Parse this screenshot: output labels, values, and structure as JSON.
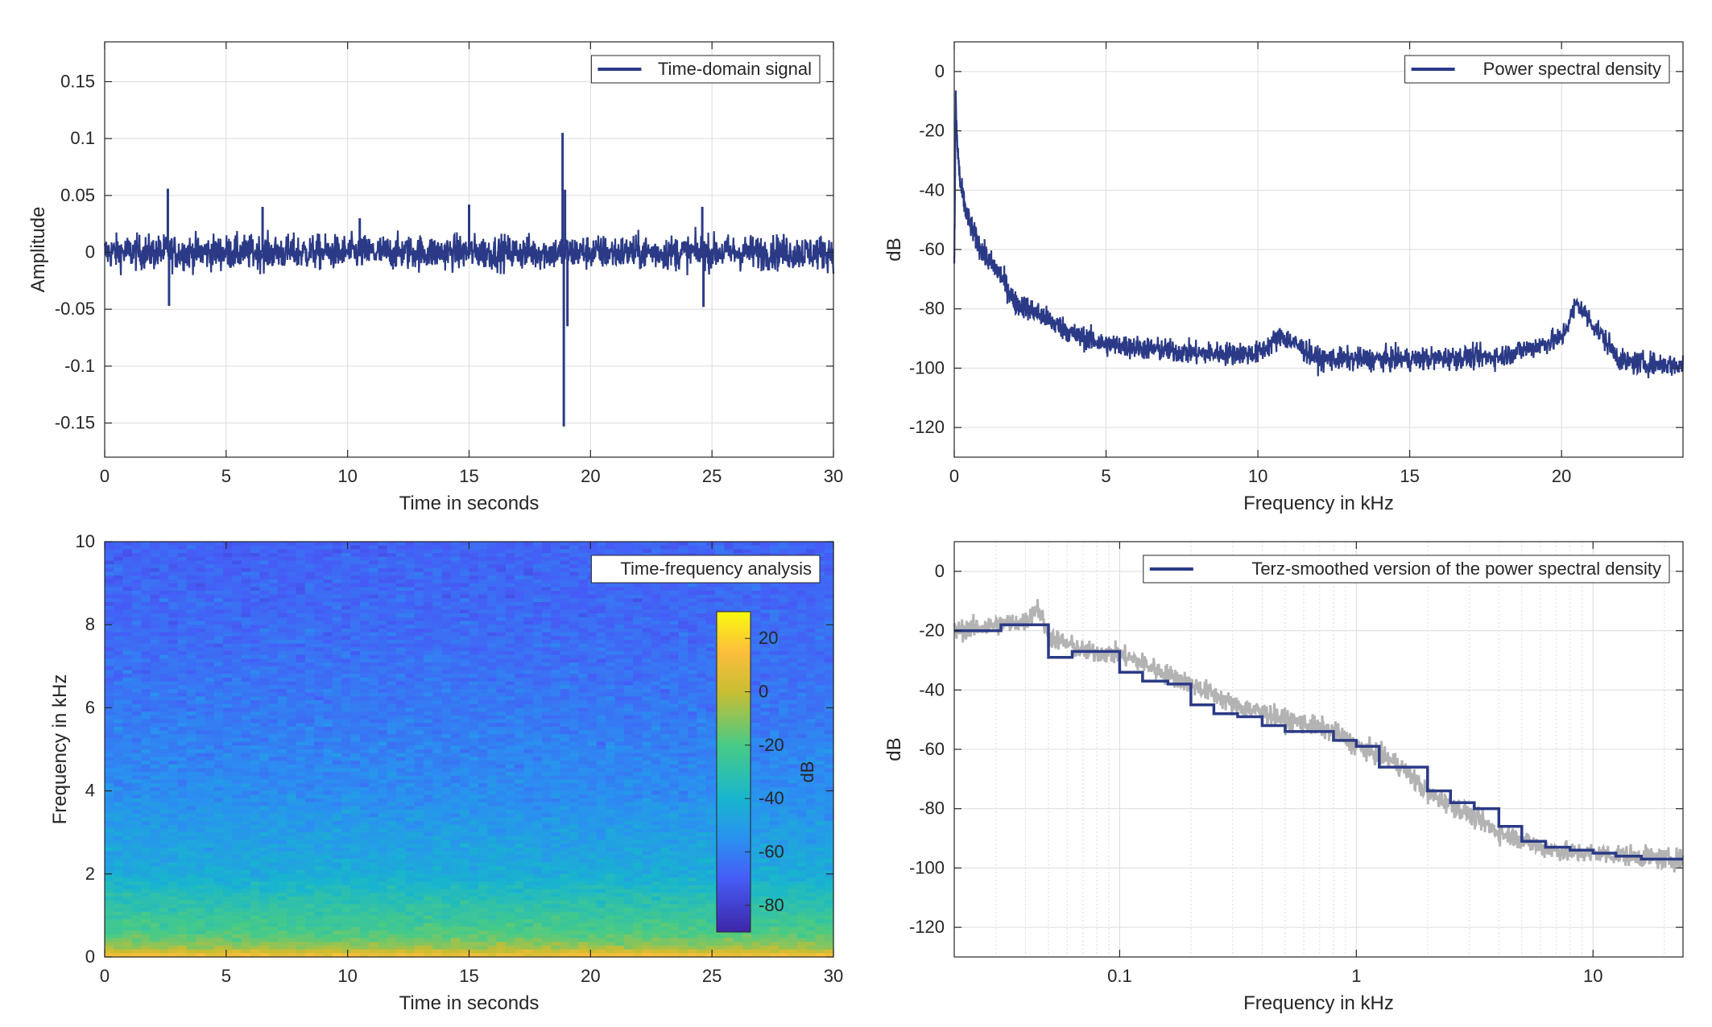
{
  "figure": {
    "colors": {
      "series": "#2b3a86",
      "raw_psd": "#b3b3b3",
      "grid": "#dcdcdc",
      "axes": "#262626",
      "spectrogram_bg": "#3f6ef0"
    }
  },
  "chart_data": [
    {
      "id": "time_signal",
      "type": "line",
      "title": "",
      "xlabel": "Time in seconds",
      "ylabel": "Amplitude",
      "xlim": [
        0,
        30
      ],
      "ylim": [
        -0.18,
        0.185
      ],
      "xticks": [
        0,
        5,
        10,
        15,
        20,
        25,
        30
      ],
      "xtick_labels": [
        "0",
        "5",
        "10",
        "15",
        "20",
        "25",
        "30"
      ],
      "yticks": [
        -0.15,
        -0.1,
        -0.05,
        0,
        0.05,
        0.1,
        0.15
      ],
      "ytick_labels": [
        "-0.15",
        "-0.1",
        "-0.05",
        "0",
        "0.05",
        "0.1",
        "0.15"
      ],
      "grid": true,
      "legend_position": "top-right",
      "series": [
        {
          "name": "Time-domain signal",
          "color": "#2b3a86",
          "noise_amplitude": 0.02,
          "x": [
            0,
            2.6,
            2.65,
            2.7,
            6.5,
            10.5,
            15.0,
            18.85,
            18.9,
            18.95,
            19.05,
            24.6,
            24.65,
            30
          ],
          "y": [
            0,
            0.056,
            -0.047,
            0,
            0.04,
            0.03,
            0.042,
            0.105,
            -0.153,
            0.055,
            -0.065,
            0.04,
            -0.048,
            0
          ]
        }
      ]
    },
    {
      "id": "psd",
      "type": "line",
      "title": "",
      "xlabel": "Frequency in kHz",
      "ylabel": "dB",
      "xlim": [
        0,
        24
      ],
      "ylim": [
        -130,
        10
      ],
      "xticks": [
        0,
        5,
        10,
        15,
        20
      ],
      "xtick_labels": [
        "0",
        "5",
        "10",
        "15",
        "20"
      ],
      "yticks": [
        -120,
        -100,
        -80,
        -60,
        -40,
        -20,
        0
      ],
      "ytick_labels": [
        "-120",
        "-100",
        "-80",
        "-60",
        "-40",
        "-20",
        "0"
      ],
      "grid": true,
      "legend_position": "top-right",
      "series": [
        {
          "name": "Power spectral density",
          "color": "#2b3a86",
          "x": [
            0,
            0.05,
            0.1,
            0.2,
            0.4,
            0.7,
            1.0,
            1.5,
            2.0,
            2.5,
            3.0,
            4.0,
            5.0,
            6.0,
            8.0,
            10.0,
            10.8,
            12.0,
            15.0,
            18.0,
            20.0,
            20.5,
            22.0,
            24.0
          ],
          "y": [
            -68,
            -10,
            -25,
            -38,
            -48,
            -56,
            -62,
            -68,
            -78,
            -80,
            -83,
            -89,
            -92,
            -93,
            -95,
            -95,
            -89,
            -97,
            -97,
            -96,
            -90,
            -78,
            -98,
            -99
          ]
        }
      ]
    },
    {
      "id": "spectrogram",
      "type": "heatmap",
      "title": "",
      "xlabel": "Time in seconds",
      "ylabel": "Frequency in kHz",
      "xlim": [
        0,
        30
      ],
      "ylim": [
        0,
        10
      ],
      "xticks": [
        0,
        5,
        10,
        15,
        20,
        25,
        30
      ],
      "xtick_labels": [
        "0",
        "5",
        "10",
        "15",
        "20",
        "25",
        "30"
      ],
      "yticks": [
        0,
        2,
        4,
        6,
        8,
        10
      ],
      "ytick_labels": [
        "0",
        "2",
        "4",
        "6",
        "8",
        "10"
      ],
      "legend_position": "top-right",
      "legend_label": "Time-frequency analysis",
      "colorbar": {
        "label": "dB",
        "range": [
          -90,
          30
        ],
        "ticks": [
          20,
          0,
          -20,
          -40,
          -60,
          -80
        ],
        "tick_labels": [
          "20",
          "0",
          "-20",
          "-40",
          "-60",
          "-80"
        ],
        "position": "right-inside"
      },
      "freq_profile_khz": [
        0,
        0.2,
        0.5,
        1.0,
        1.5,
        2.0,
        3.0,
        4.0,
        6.0,
        8.0,
        10.0
      ],
      "freq_profile_db": [
        15,
        -5,
        -18,
        -26,
        -34,
        -44,
        -50,
        -56,
        -62,
        -66,
        -68
      ]
    },
    {
      "id": "terz_psd",
      "type": "line",
      "title": "",
      "xlabel": "Frequency in kHz",
      "ylabel": "dB",
      "xscale": "log",
      "xlim": [
        0.02,
        24
      ],
      "ylim": [
        -130,
        10
      ],
      "xticks": [
        0.1,
        1,
        10
      ],
      "xtick_labels": [
        "0.1",
        "1",
        "10"
      ],
      "yticks": [
        -120,
        -100,
        -80,
        -60,
        -40,
        -20,
        0
      ],
      "ytick_labels": [
        "-120",
        "-100",
        "-80",
        "-60",
        "-40",
        "-20",
        "0"
      ],
      "grid": true,
      "legend_position": "top-right",
      "raw_series": {
        "color": "#b3b3b3",
        "x": [
          0.02,
          0.03,
          0.04,
          0.045,
          0.05,
          0.07,
          0.1,
          0.15,
          0.2,
          0.3,
          0.5,
          0.8,
          1.0,
          1.5,
          2.0,
          3.0,
          4.0,
          6.0,
          8.0,
          10.0,
          15.0,
          20.0,
          24.0
        ],
        "y": [
          -20,
          -18,
          -17,
          -12,
          -22,
          -27,
          -28,
          -34,
          -38,
          -45,
          -50,
          -54,
          -59,
          -65,
          -75,
          -82,
          -88,
          -93,
          -95,
          -95,
          -96,
          -97,
          -97
        ]
      },
      "series": [
        {
          "name": "Terz-smoothed version of the power spectral density",
          "color": "#2b3a86",
          "x": [
            0.02,
            0.0315,
            0.0315,
            0.05,
            0.05,
            0.063,
            0.063,
            0.1,
            0.1,
            0.125,
            0.125,
            0.16,
            0.16,
            0.2,
            0.2,
            0.25,
            0.25,
            0.315,
            0.315,
            0.4,
            0.4,
            0.5,
            0.5,
            0.63,
            0.63,
            0.8,
            0.8,
            1.0,
            1.0,
            1.25,
            1.25,
            1.6,
            1.6,
            2.0,
            2.0,
            2.5,
            2.5,
            3.15,
            3.15,
            4.0,
            4.0,
            5.0,
            5.0,
            6.3,
            6.3,
            8.0,
            8.0,
            10.0,
            10.0,
            12.5,
            12.5,
            16.0,
            16.0,
            24.0
          ],
          "y": [
            -20,
            -20,
            -18,
            -18,
            -29,
            -29,
            -27,
            -27,
            -34,
            -34,
            -37,
            -37,
            -38,
            -38,
            -45,
            -45,
            -48,
            -48,
            -49,
            -49,
            -52,
            -52,
            -54,
            -54,
            -54,
            -54,
            -57,
            -57,
            -59,
            -59,
            -66,
            -66,
            -66,
            -66,
            -74,
            -74,
            -78,
            -78,
            -80,
            -80,
            -86,
            -86,
            -91,
            -91,
            -93,
            -93,
            -94,
            -94,
            -95,
            -95,
            -96,
            -96,
            -97,
            -97
          ]
        }
      ]
    }
  ]
}
